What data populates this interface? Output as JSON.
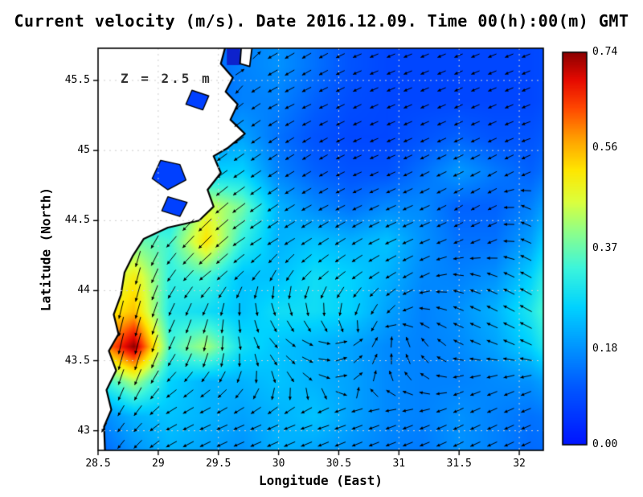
{
  "title": "Current velocity (m/s). Date 2016.12.09. Time 00(h):00(m) GMT",
  "annotation": "Z = 2.5 m",
  "axes": {
    "x_label": "Longitude (East)",
    "y_label": "Latitude (North)",
    "x_ticks": [
      28.5,
      29,
      29.5,
      30,
      30.5,
      31,
      31.5,
      32
    ],
    "x_tick_labels": [
      "28.5",
      "29",
      "29.5",
      "30",
      "30.5",
      "31",
      "31.5",
      "32"
    ],
    "y_ticks": [
      43,
      43.5,
      44,
      44.5,
      45,
      45.5
    ],
    "y_tick_labels": [
      "43",
      "43.5",
      "44",
      "44.5",
      "45",
      "45.5"
    ],
    "x_range": [
      28.5,
      32.2
    ],
    "y_range": [
      42.86,
      45.73
    ],
    "grid": "dotted"
  },
  "colorbar": {
    "min": 0.0,
    "max": 0.74,
    "ticks": [
      0.74,
      0.56,
      0.37,
      0.18,
      0.0
    ],
    "tick_labels": [
      "0.74",
      "0.56",
      "0.37",
      "0.18",
      "0.00"
    ],
    "position": "right"
  },
  "colormap": [
    {
      "v": 0.0,
      "c": "#0014ff"
    },
    {
      "v": 0.111,
      "c": "#005aff"
    },
    {
      "v": 0.185,
      "c": "#0096ff"
    },
    {
      "v": 0.259,
      "c": "#00d2ff"
    },
    {
      "v": 0.333,
      "c": "#3cf5dc"
    },
    {
      "v": 0.407,
      "c": "#96ff82"
    },
    {
      "v": 0.459,
      "c": "#dcff3c"
    },
    {
      "v": 0.518,
      "c": "#ffe600"
    },
    {
      "v": 0.577,
      "c": "#ffa000"
    },
    {
      "v": 0.636,
      "c": "#ff4600"
    },
    {
      "v": 0.688,
      "c": "#e60a00"
    },
    {
      "v": 0.74,
      "c": "#8c0000"
    }
  ],
  "colors": {
    "land": "#ffffff",
    "coast": "#000000",
    "arrow": "#000000",
    "gridline": "#cfcfcf",
    "frame": "#000000",
    "annotation": "#333333",
    "background": "#ffffff",
    "bay_patch": "#0d22cc"
  },
  "chart_data": {
    "type": "heatmap",
    "title": "Current velocity (m/s). Date 2016.12.09. Time 00(h):00(m) GMT",
    "date": "2016.12.09",
    "time": "00(h):00(m) GMT",
    "depth": "Z = 2.5 m",
    "units": "m/s",
    "xlabel": "Longitude (East)",
    "ylabel": "Latitude (North)",
    "overlay": "quiver",
    "colorbar_range": [
      0,
      0.74
    ],
    "colorbar_ticks": [
      0.0,
      0.18,
      0.37,
      0.56,
      0.74
    ],
    "row_order": "south_to_north",
    "grid_lon": [
      28.5,
      28.8,
      29.1,
      29.4,
      29.7,
      30.0,
      30.3,
      30.6,
      30.9,
      31.2,
      31.5,
      31.8,
      32.1,
      32.45
    ],
    "grid_lat": [
      42.85,
      43.1,
      43.35,
      43.6,
      43.85,
      44.1,
      44.35,
      44.6,
      44.85,
      45.1,
      45.35,
      45.6,
      45.73
    ],
    "speed": [
      [
        0.12,
        0.18,
        0.22,
        0.2,
        0.18,
        0.22,
        0.2,
        0.18,
        0.16,
        0.15,
        0.18,
        0.16,
        0.13,
        0.14
      ],
      [
        0.16,
        0.22,
        0.24,
        0.22,
        0.2,
        0.22,
        0.24,
        0.2,
        0.17,
        0.16,
        0.18,
        0.16,
        0.14,
        0.16
      ],
      [
        0.3,
        0.42,
        0.26,
        0.22,
        0.22,
        0.24,
        0.22,
        0.2,
        0.17,
        0.16,
        0.16,
        0.17,
        0.18,
        0.24
      ],
      [
        0.55,
        0.74,
        0.34,
        0.42,
        0.28,
        0.24,
        0.22,
        0.2,
        0.17,
        0.16,
        0.17,
        0.2,
        0.26,
        0.4
      ],
      [
        0.48,
        0.55,
        0.3,
        0.28,
        0.24,
        0.28,
        0.28,
        0.26,
        0.2,
        0.16,
        0.18,
        0.22,
        0.3,
        0.46
      ],
      [
        0.4,
        0.5,
        0.32,
        0.34,
        0.24,
        0.24,
        0.28,
        0.26,
        0.22,
        0.17,
        0.16,
        0.18,
        0.26,
        0.44
      ],
      [
        0.28,
        0.38,
        0.34,
        0.52,
        0.32,
        0.22,
        0.24,
        0.22,
        0.24,
        0.18,
        0.14,
        0.14,
        0.2,
        0.38
      ],
      [
        0.16,
        0.22,
        0.28,
        0.46,
        0.38,
        0.22,
        0.17,
        0.14,
        0.17,
        0.17,
        0.12,
        0.12,
        0.16,
        0.28
      ],
      [
        0.1,
        0.14,
        0.18,
        0.26,
        0.26,
        0.16,
        0.12,
        0.1,
        0.1,
        0.14,
        0.19,
        0.15,
        0.12,
        0.18
      ],
      [
        0.08,
        0.1,
        0.12,
        0.16,
        0.2,
        0.14,
        0.1,
        0.08,
        0.08,
        0.1,
        0.12,
        0.1,
        0.1,
        0.14
      ],
      [
        0.08,
        0.08,
        0.1,
        0.13,
        0.16,
        0.16,
        0.12,
        0.09,
        0.08,
        0.08,
        0.08,
        0.08,
        0.08,
        0.11
      ],
      [
        0.06,
        0.08,
        0.09,
        0.12,
        0.16,
        0.18,
        0.14,
        0.1,
        0.08,
        0.08,
        0.08,
        0.08,
        0.08,
        0.1
      ],
      [
        0.06,
        0.08,
        0.09,
        0.12,
        0.16,
        0.18,
        0.14,
        0.1,
        0.08,
        0.08,
        0.08,
        0.08,
        0.08,
        0.1
      ]
    ],
    "u": [
      [
        -0.06,
        -0.12,
        -0.18,
        -0.16,
        -0.14,
        -0.18,
        -0.16,
        -0.14,
        -0.13,
        -0.12,
        -0.15,
        -0.13,
        -0.11,
        -0.12
      ],
      [
        -0.06,
        -0.14,
        -0.2,
        -0.18,
        -0.16,
        -0.18,
        -0.2,
        -0.17,
        -0.14,
        -0.13,
        -0.15,
        -0.13,
        -0.12,
        -0.13
      ],
      [
        -0.08,
        -0.16,
        -0.18,
        -0.14,
        -0.08,
        0.06,
        0.14,
        0.12,
        -0.04,
        -0.1,
        -0.12,
        -0.13,
        -0.15,
        -0.18
      ],
      [
        -0.1,
        -0.18,
        -0.14,
        -0.08,
        0.06,
        0.16,
        0.18,
        0.14,
        0.04,
        -0.08,
        -0.12,
        -0.16,
        -0.22,
        -0.32
      ],
      [
        -0.1,
        -0.14,
        -0.12,
        -0.1,
        0.02,
        0.1,
        0.06,
        -0.06,
        -0.12,
        -0.12,
        -0.14,
        -0.18,
        -0.25,
        -0.4
      ],
      [
        -0.08,
        -0.12,
        -0.18,
        -0.26,
        -0.16,
        -0.1,
        -0.2,
        -0.2,
        -0.18,
        -0.14,
        -0.13,
        -0.15,
        -0.22,
        -0.38
      ],
      [
        -0.06,
        -0.1,
        -0.22,
        -0.36,
        -0.26,
        -0.18,
        -0.2,
        -0.18,
        -0.21,
        -0.16,
        -0.12,
        -0.12,
        -0.17,
        -0.3
      ],
      [
        -0.04,
        -0.09,
        -0.19,
        -0.33,
        -0.3,
        -0.18,
        -0.15,
        -0.12,
        -0.15,
        -0.15,
        -0.1,
        -0.1,
        -0.13,
        -0.22
      ],
      [
        0.02,
        -0.06,
        -0.13,
        -0.21,
        -0.21,
        -0.13,
        -0.1,
        -0.09,
        -0.09,
        -0.12,
        -0.17,
        -0.13,
        -0.1,
        -0.15
      ],
      [
        0.04,
        0.04,
        -0.07,
        -0.12,
        -0.16,
        -0.11,
        -0.09,
        -0.07,
        -0.07,
        -0.09,
        -0.11,
        -0.09,
        -0.09,
        -0.12
      ],
      [
        0.04,
        0.05,
        0.07,
        0.09,
        -0.11,
        -0.14,
        -0.11,
        -0.08,
        -0.07,
        -0.07,
        -0.07,
        -0.07,
        -0.07,
        -0.1
      ],
      [
        0.03,
        0.05,
        0.07,
        0.1,
        0.13,
        -0.15,
        -0.12,
        -0.09,
        -0.07,
        -0.07,
        -0.07,
        -0.07,
        -0.07,
        -0.09
      ],
      [
        0.03,
        0.05,
        0.07,
        0.1,
        0.13,
        -0.15,
        -0.12,
        -0.09,
        -0.07,
        -0.07,
        -0.07,
        -0.07,
        -0.07,
        -0.09
      ]
    ],
    "v": [
      [
        -0.1,
        -0.13,
        -0.1,
        -0.08,
        -0.06,
        -0.08,
        -0.07,
        -0.06,
        -0.05,
        -0.05,
        -0.07,
        -0.06,
        -0.05,
        -0.05
      ],
      [
        -0.14,
        -0.17,
        -0.11,
        -0.08,
        -0.07,
        -0.08,
        -0.06,
        -0.06,
        -0.05,
        -0.05,
        -0.07,
        -0.06,
        -0.05,
        -0.07
      ],
      [
        -0.28,
        -0.38,
        -0.17,
        -0.14,
        -0.17,
        -0.18,
        -0.1,
        0.06,
        0.1,
        0.06,
        -0.04,
        -0.05,
        -0.06,
        0.1
      ],
      [
        -0.52,
        -0.7,
        -0.3,
        -0.4,
        -0.26,
        -0.14,
        -0.04,
        0.1,
        0.15,
        0.12,
        0.06,
        0.06,
        0.1,
        0.24
      ],
      [
        -0.46,
        -0.52,
        -0.27,
        -0.25,
        -0.23,
        -0.25,
        -0.27,
        -0.24,
        -0.14,
        0.02,
        0.06,
        0.09,
        0.14,
        0.2
      ],
      [
        -0.38,
        -0.48,
        -0.26,
        -0.21,
        -0.16,
        -0.21,
        -0.18,
        -0.15,
        -0.11,
        -0.07,
        0.02,
        0.06,
        0.12,
        0.2
      ],
      [
        -0.26,
        -0.36,
        -0.25,
        -0.36,
        -0.17,
        -0.11,
        -0.13,
        -0.11,
        -0.1,
        -0.07,
        -0.05,
        -0.05,
        0.09,
        0.22
      ],
      [
        -0.14,
        -0.2,
        -0.2,
        -0.31,
        -0.22,
        -0.12,
        -0.08,
        -0.06,
        -0.07,
        -0.07,
        -0.06,
        -0.05,
        0.07,
        0.16
      ],
      [
        -0.07,
        -0.12,
        -0.12,
        -0.15,
        -0.14,
        -0.08,
        -0.06,
        -0.04,
        -0.04,
        -0.06,
        -0.08,
        -0.07,
        -0.05,
        0.09
      ],
      [
        0.03,
        0.05,
        -0.09,
        -0.1,
        -0.11,
        -0.07,
        -0.05,
        -0.03,
        -0.03,
        -0.04,
        -0.05,
        -0.04,
        -0.03,
        0.06
      ],
      [
        0.03,
        0.05,
        0.07,
        0.08,
        -0.09,
        -0.07,
        -0.05,
        -0.04,
        -0.03,
        -0.03,
        -0.03,
        -0.03,
        -0.03,
        0.04
      ],
      [
        0.02,
        0.05,
        0.06,
        0.08,
        0.09,
        -0.09,
        -0.07,
        -0.04,
        -0.03,
        -0.03,
        -0.03,
        -0.03,
        -0.03,
        0.03
      ],
      [
        0.02,
        0.05,
        0.06,
        0.08,
        0.09,
        -0.09,
        -0.07,
        -0.04,
        -0.03,
        -0.03,
        -0.03,
        -0.03,
        -0.03,
        0.03
      ]
    ]
  },
  "geography": {
    "coastline": [
      [
        29.57,
        45.78
      ],
      [
        29.52,
        45.62
      ],
      [
        29.62,
        45.52
      ],
      [
        29.56,
        45.42
      ],
      [
        29.66,
        45.33
      ],
      [
        29.6,
        45.22
      ],
      [
        29.72,
        45.12
      ],
      [
        29.58,
        45.02
      ],
      [
        29.46,
        44.96
      ],
      [
        29.52,
        44.84
      ],
      [
        29.41,
        44.72
      ],
      [
        29.46,
        44.6
      ],
      [
        29.34,
        44.5
      ],
      [
        29.08,
        44.45
      ],
      [
        28.88,
        44.37
      ],
      [
        28.79,
        44.25
      ],
      [
        28.72,
        44.13
      ],
      [
        28.69,
        43.97
      ],
      [
        28.63,
        43.83
      ],
      [
        28.67,
        43.69
      ],
      [
        28.59,
        43.57
      ],
      [
        28.65,
        43.43
      ],
      [
        28.57,
        43.29
      ],
      [
        28.61,
        43.15
      ],
      [
        28.55,
        43.03
      ],
      [
        28.56,
        42.8
      ],
      [
        28.4,
        42.8
      ],
      [
        28.4,
        45.78
      ]
    ],
    "lakes": [
      [
        [
          29.02,
          44.93
        ],
        [
          29.18,
          44.9
        ],
        [
          29.23,
          44.79
        ],
        [
          29.08,
          44.72
        ],
        [
          28.95,
          44.8
        ]
      ],
      [
        [
          29.08,
          44.67
        ],
        [
          29.24,
          44.63
        ],
        [
          29.18,
          44.53
        ],
        [
          29.03,
          44.57
        ]
      ],
      [
        [
          29.28,
          45.43
        ],
        [
          29.42,
          45.39
        ],
        [
          29.37,
          45.29
        ],
        [
          29.23,
          45.33
        ]
      ]
    ],
    "bay_patch": [
      [
        29.57,
        45.73
      ],
      [
        29.68,
        45.73
      ],
      [
        29.68,
        45.61
      ],
      [
        29.57,
        45.61
      ]
    ],
    "islet": [
      [
        29.69,
        45.74
      ],
      [
        29.78,
        45.74
      ],
      [
        29.76,
        45.6
      ],
      [
        29.68,
        45.62
      ]
    ]
  }
}
